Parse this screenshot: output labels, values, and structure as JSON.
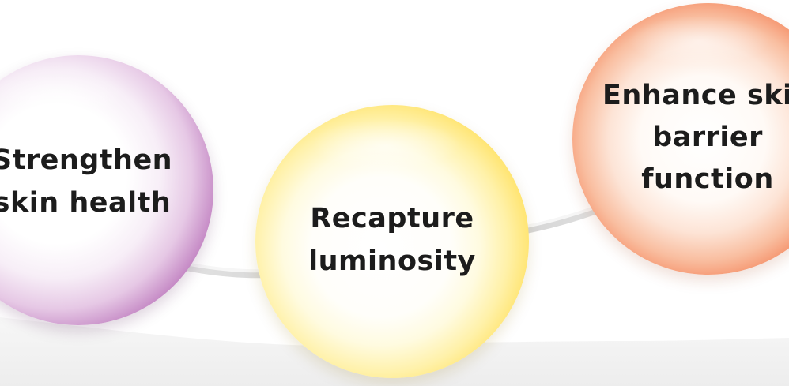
{
  "orbs": [
    {
      "label": "Strengthen\nskin health",
      "color": "#7e2d80",
      "color_name": "purple"
    },
    {
      "label": "Recapture\nluminosity",
      "color": "#f4c41c",
      "color_name": "yellow"
    },
    {
      "label": "Enhance skin\nbarrier\nfunction",
      "color": "#e45327",
      "color_name": "orange"
    }
  ],
  "colors": {
    "background": "#ffffff",
    "wave_light": "#f3f3f3",
    "wave_shadow": "#d6d6d6",
    "text": "#1c1c1c"
  }
}
